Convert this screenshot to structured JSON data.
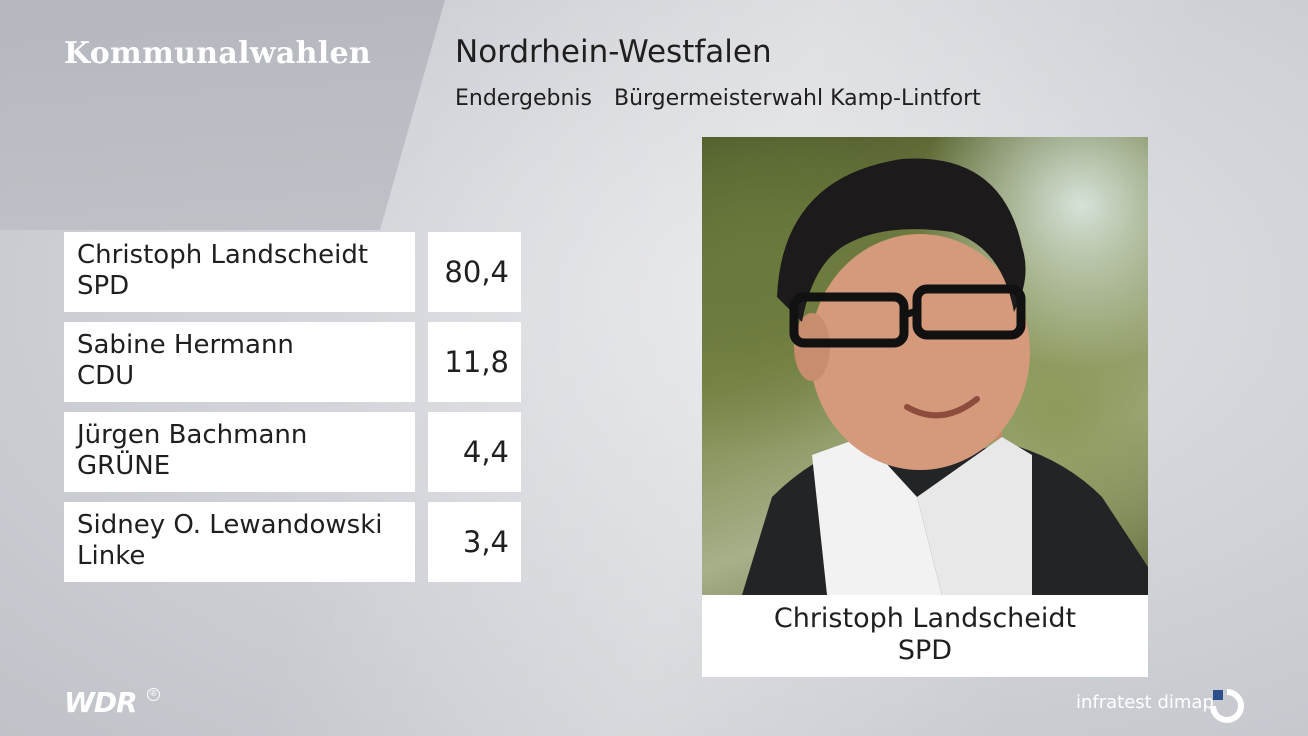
{
  "section": "Kommunalwahlen",
  "header": {
    "title": "Nordrhein-Westfalen",
    "status": "Endergebnis",
    "election": "Bürgermeisterwahl Kamp-Lintfort"
  },
  "results": [
    {
      "name": "Christoph Landscheidt",
      "party": "SPD",
      "value": "80,4"
    },
    {
      "name": "Sabine Hermann",
      "party": "CDU",
      "value": "11,8"
    },
    {
      "name": "Jürgen Bachmann",
      "party": "GRÜNE",
      "value": "4,4"
    },
    {
      "name": "Sidney O. Lewandowski",
      "party": "Linke",
      "value": "3,4"
    }
  ],
  "winner": {
    "name": "Christoph Landscheidt",
    "party": "SPD"
  },
  "footer": {
    "broadcaster": "WDR",
    "broadcaster_mark": "®",
    "brand": "infratest dimap",
    "brand_icon": "infratest-dimap-logo-icon"
  }
}
